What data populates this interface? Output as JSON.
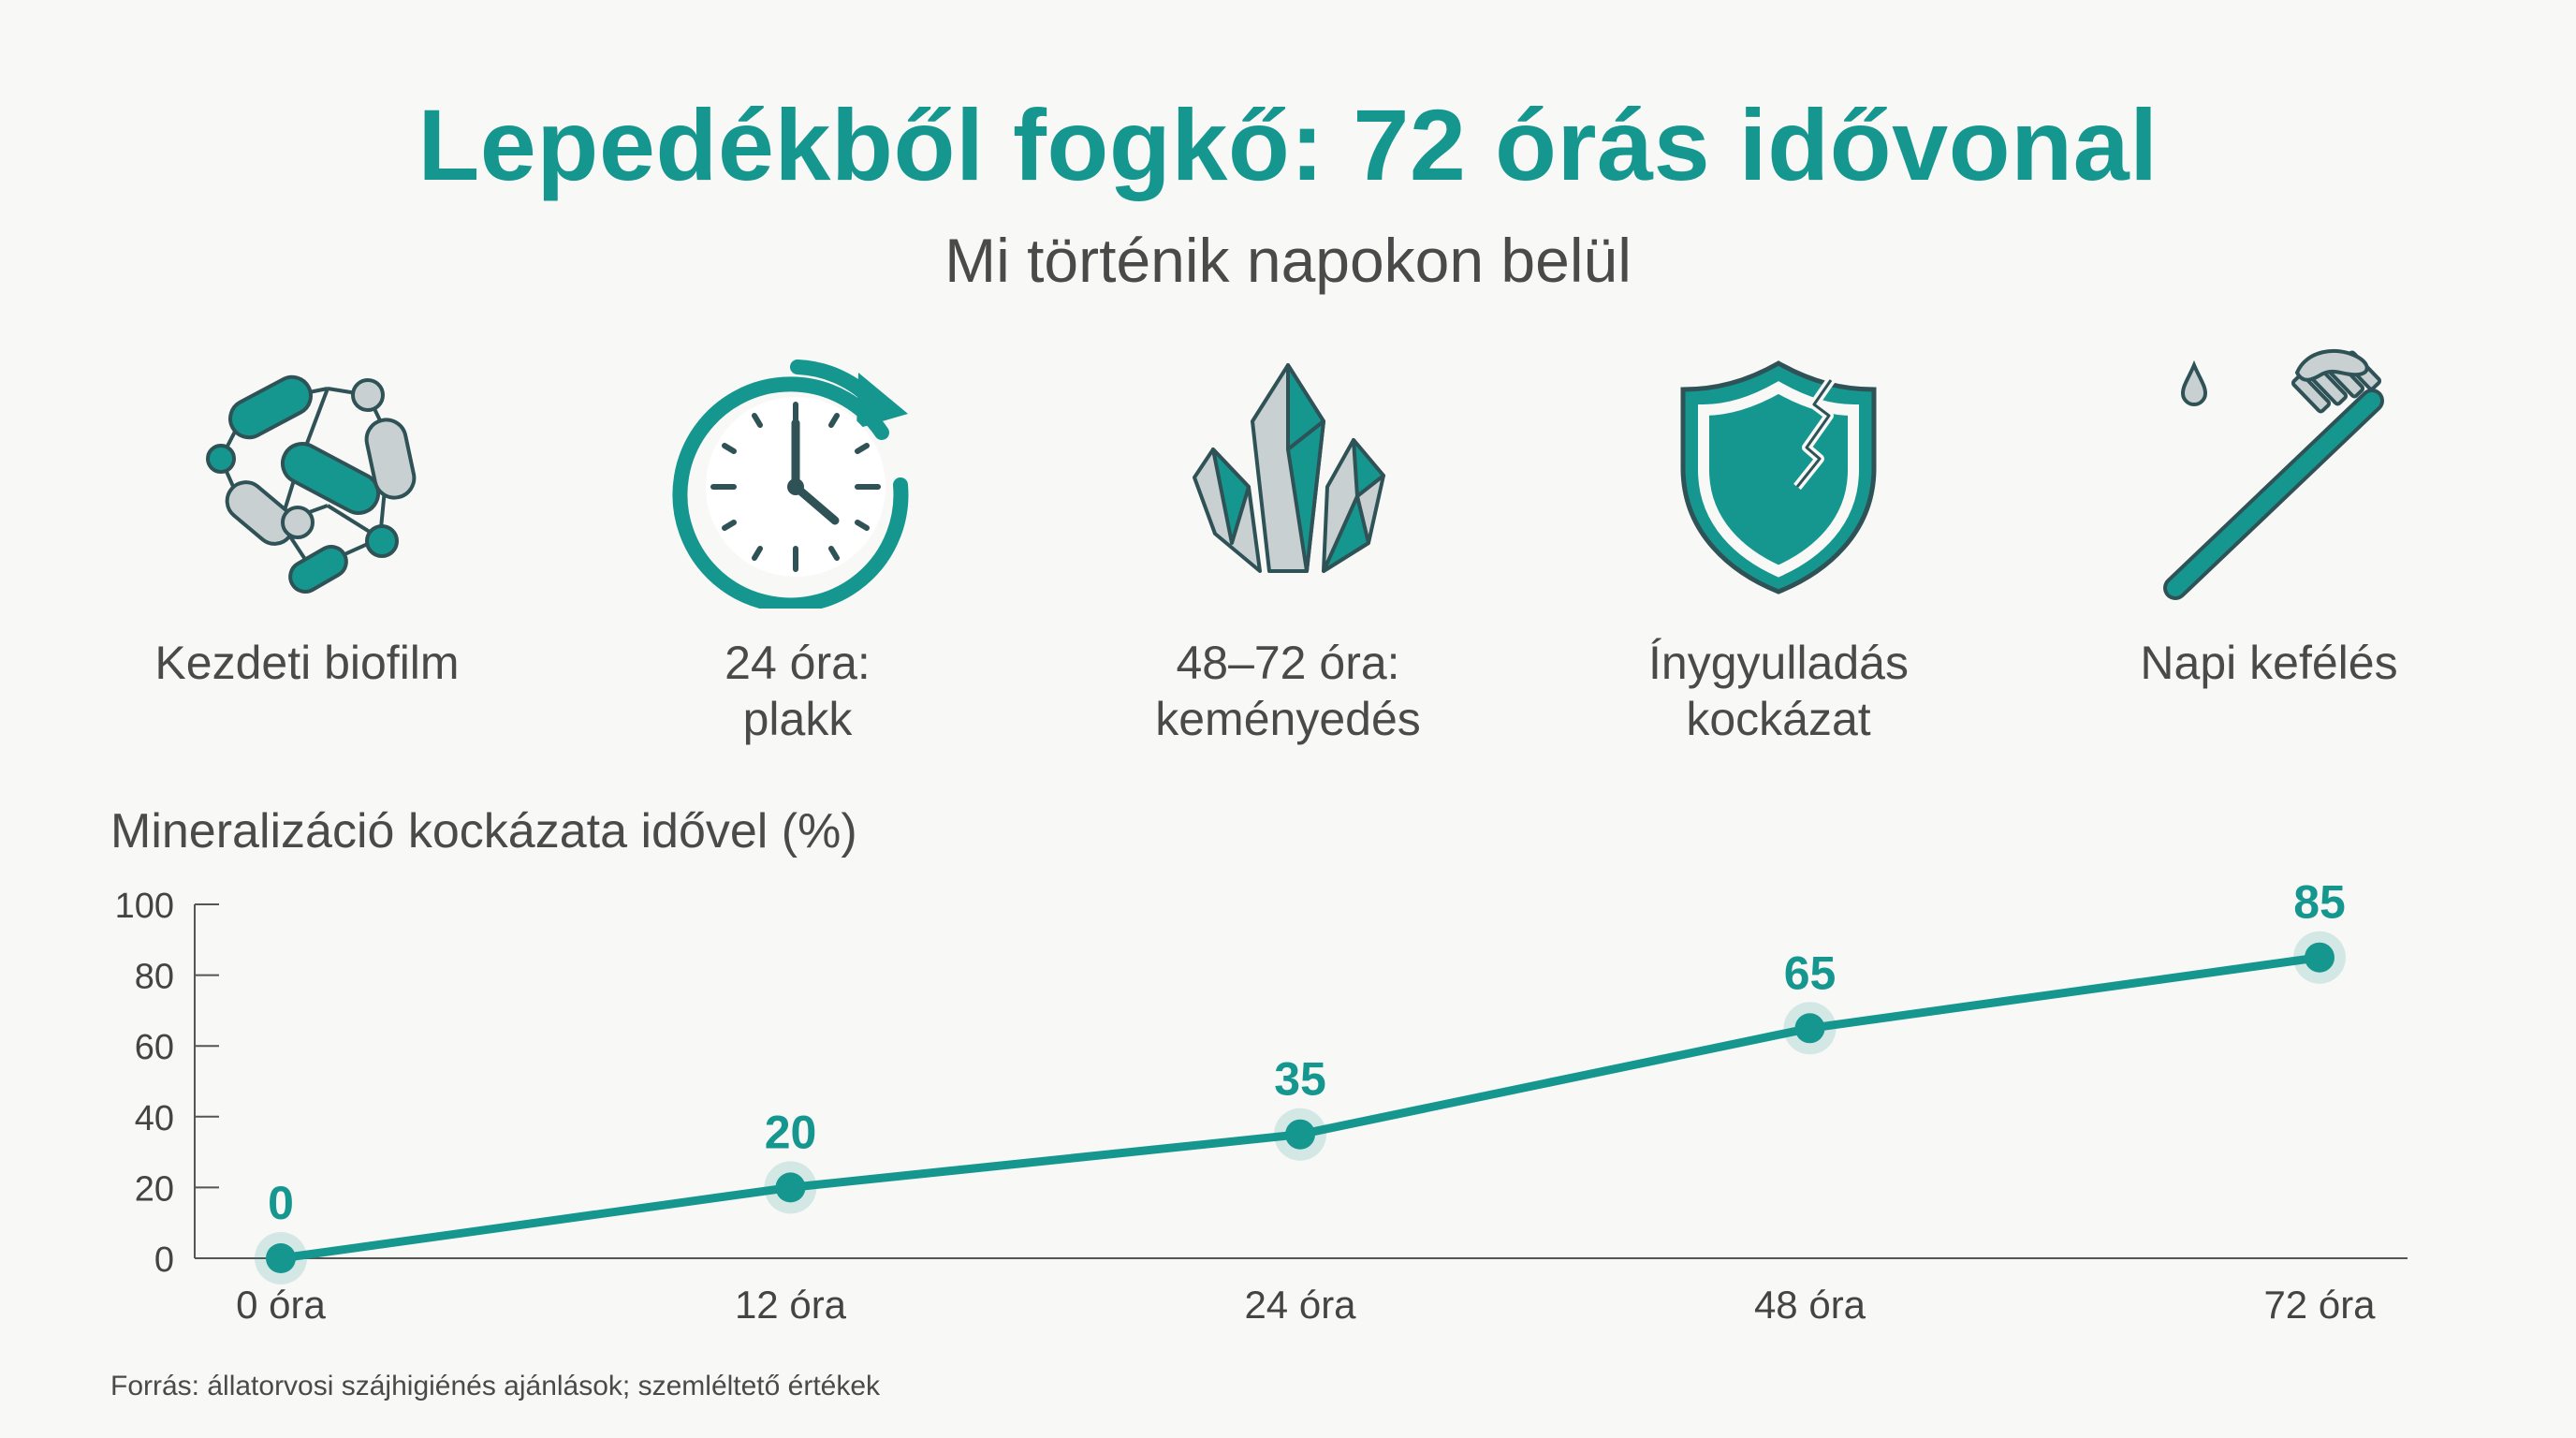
{
  "title": "Lepedékből fogkő: 72 órás idővonal",
  "subtitle": "Mi történik napokon belül",
  "icons": [
    {
      "name": "biofilm-bacteria-icon",
      "label": "Kezdeti biofilm"
    },
    {
      "name": "clock-icon",
      "label": "24 óra:\nplakk"
    },
    {
      "name": "crystal-icon",
      "label": "48–72 óra:\nkeményedés"
    },
    {
      "name": "cracked-shield-icon",
      "label": "Ínygyulladás\nkockázat"
    },
    {
      "name": "toothbrush-icon",
      "label": "Napi kefélés"
    }
  ],
  "chart_data": {
    "type": "line",
    "title": "Mineralizáció kockázata idővel (%)",
    "categories": [
      "0 óra",
      "12 óra",
      "24 óra",
      "48 óra",
      "72 óra"
    ],
    "values": [
      0,
      20,
      35,
      65,
      85
    ],
    "ylim": [
      0,
      100
    ],
    "yticks": [
      0,
      20,
      40,
      60,
      80,
      100
    ],
    "data_labels": true,
    "grid": false,
    "color": "#159790"
  },
  "source": "Forrás: állatorvosi szájhigiénés ajánlások; szemléltető értékek"
}
